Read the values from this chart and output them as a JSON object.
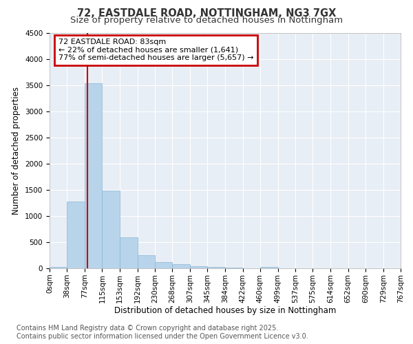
{
  "title": "72, EASTDALE ROAD, NOTTINGHAM, NG3 7GX",
  "subtitle": "Size of property relative to detached houses in Nottingham",
  "xlabel": "Distribution of detached houses by size in Nottingham",
  "ylabel": "Number of detached properties",
  "bin_edges": [
    0,
    38,
    77,
    115,
    153,
    192,
    230,
    268,
    307,
    345,
    384,
    422,
    460,
    499,
    537,
    575,
    614,
    652,
    690,
    729,
    767
  ],
  "bar_heights": [
    30,
    1280,
    3530,
    1490,
    590,
    250,
    120,
    80,
    40,
    20,
    10,
    0,
    30,
    0,
    0,
    0,
    0,
    0,
    0,
    0
  ],
  "bar_color": "#b8d4ea",
  "bar_edge_color": "#8ab4d4",
  "property_size": 83,
  "vline_color": "#cc0000",
  "annotation_line1": "72 EASTDALE ROAD: 83sqm",
  "annotation_line2": "← 22% of detached houses are smaller (1,641)",
  "annotation_line3": "77% of semi-detached houses are larger (5,657) →",
  "annotation_box_color": "#cc0000",
  "ylim": [
    0,
    4500
  ],
  "yticks": [
    0,
    500,
    1000,
    1500,
    2000,
    2500,
    3000,
    3500,
    4000,
    4500
  ],
  "bg_color": "#ffffff",
  "plot_bg_color": "#e8eef5",
  "grid_color": "#ffffff",
  "footer_text": "Contains HM Land Registry data © Crown copyright and database right 2025.\nContains public sector information licensed under the Open Government Licence v3.0.",
  "title_fontsize": 10.5,
  "subtitle_fontsize": 9.5,
  "axis_label_fontsize": 8.5,
  "tick_fontsize": 7.5,
  "footer_fontsize": 7
}
